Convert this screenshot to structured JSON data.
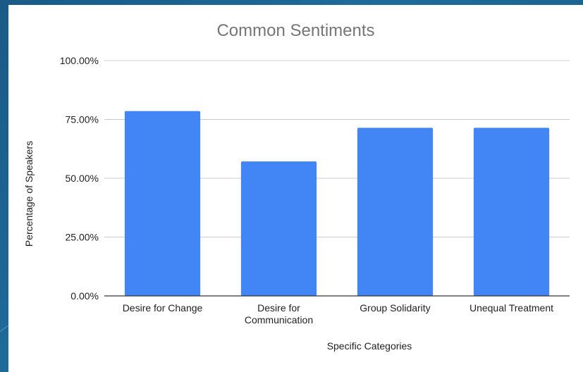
{
  "chart_data": {
    "type": "bar",
    "title": "Common Sentiments",
    "xlabel": "Specific Categories",
    "ylabel": "Percentage of Speakers",
    "categories": [
      [
        "Desire for Change"
      ],
      [
        "Desire for",
        "Communication"
      ],
      [
        "Group Solidarity"
      ],
      [
        "Unequal Treatment"
      ]
    ],
    "values": [
      78.57,
      57.14,
      71.43,
      71.43
    ],
    "ylim": [
      0,
      100
    ],
    "yticks": [
      0,
      25,
      50,
      75,
      100
    ],
    "ytick_labels": [
      "0.00%",
      "25.00%",
      "50.00%",
      "75.00%",
      "100.00%"
    ],
    "grid": true,
    "legend": "none",
    "colors": {
      "bar": "#4285f4",
      "grid": "#cccccc",
      "axis": "#333333",
      "text": "#222222",
      "title": "#757575"
    }
  }
}
